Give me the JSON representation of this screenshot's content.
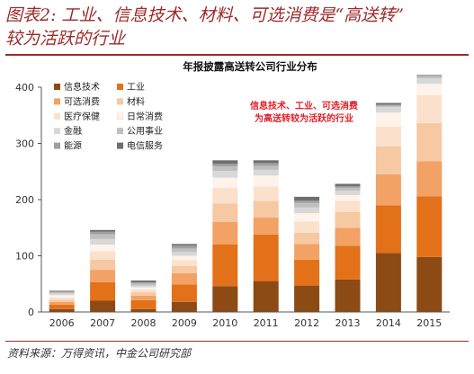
{
  "figure": {
    "title_line1": "图表2: 工业、信息技术、材料、可选消费是“高送转”",
    "title_line2": "较为活跃的行业",
    "source": "资料来源：万得资讯，中金公司研究部"
  },
  "chart_data": {
    "type": "bar",
    "stacked": true,
    "title": "年报披露高送转公司行业分布",
    "categories": [
      "2006",
      "2007",
      "2008",
      "2009",
      "2010",
      "2011",
      "2012",
      "2013",
      "2014",
      "2015"
    ],
    "ylim": [
      0,
      400
    ],
    "yticks": [
      0,
      100,
      200,
      300,
      400
    ],
    "grid": false,
    "legend_position": "top-left",
    "annotation": {
      "line1": "信息技术、工业、可选消费",
      "line2": "为高送转较为活跃的行业"
    },
    "series": [
      {
        "name": "信息技术",
        "color": "#8c4a14",
        "values": [
          5,
          20,
          5,
          18,
          46,
          55,
          47,
          58,
          105,
          98
        ]
      },
      {
        "name": "工业",
        "color": "#e2711a",
        "values": [
          8,
          33,
          16,
          31,
          74,
          83,
          46,
          60,
          85,
          108
        ]
      },
      {
        "name": "可选消费",
        "color": "#f1a264",
        "values": [
          5,
          22,
          8,
          20,
          40,
          30,
          28,
          32,
          55,
          62
        ]
      },
      {
        "name": "材料",
        "color": "#f6c9a2",
        "values": [
          4,
          18,
          6,
          13,
          33,
          30,
          20,
          28,
          50,
          68
        ]
      },
      {
        "name": "医疗保健",
        "color": "#fbe1cc",
        "values": [
          4,
          15,
          5,
          10,
          28,
          25,
          20,
          20,
          35,
          50
        ]
      },
      {
        "name": "日常消费",
        "color": "#fdf3ea",
        "values": [
          4,
          12,
          4,
          8,
          18,
          20,
          15,
          10,
          25,
          20
        ]
      },
      {
        "name": "金融",
        "color": "#d8d8d8",
        "values": [
          3,
          10,
          3,
          7,
          12,
          10,
          10,
          8,
          10,
          10
        ]
      },
      {
        "name": "公用事业",
        "color": "#bfbfbf",
        "values": [
          2,
          8,
          4,
          6,
          8,
          7,
          8,
          5,
          2,
          4
        ]
      },
      {
        "name": "能源",
        "color": "#a0a0a0",
        "values": [
          2,
          5,
          2,
          5,
          5,
          5,
          4,
          3,
          2,
          1
        ]
      },
      {
        "name": "电信服务",
        "color": "#6e6e6e",
        "values": [
          1,
          3,
          3,
          3,
          6,
          5,
          7,
          4,
          3,
          1
        ]
      }
    ]
  }
}
